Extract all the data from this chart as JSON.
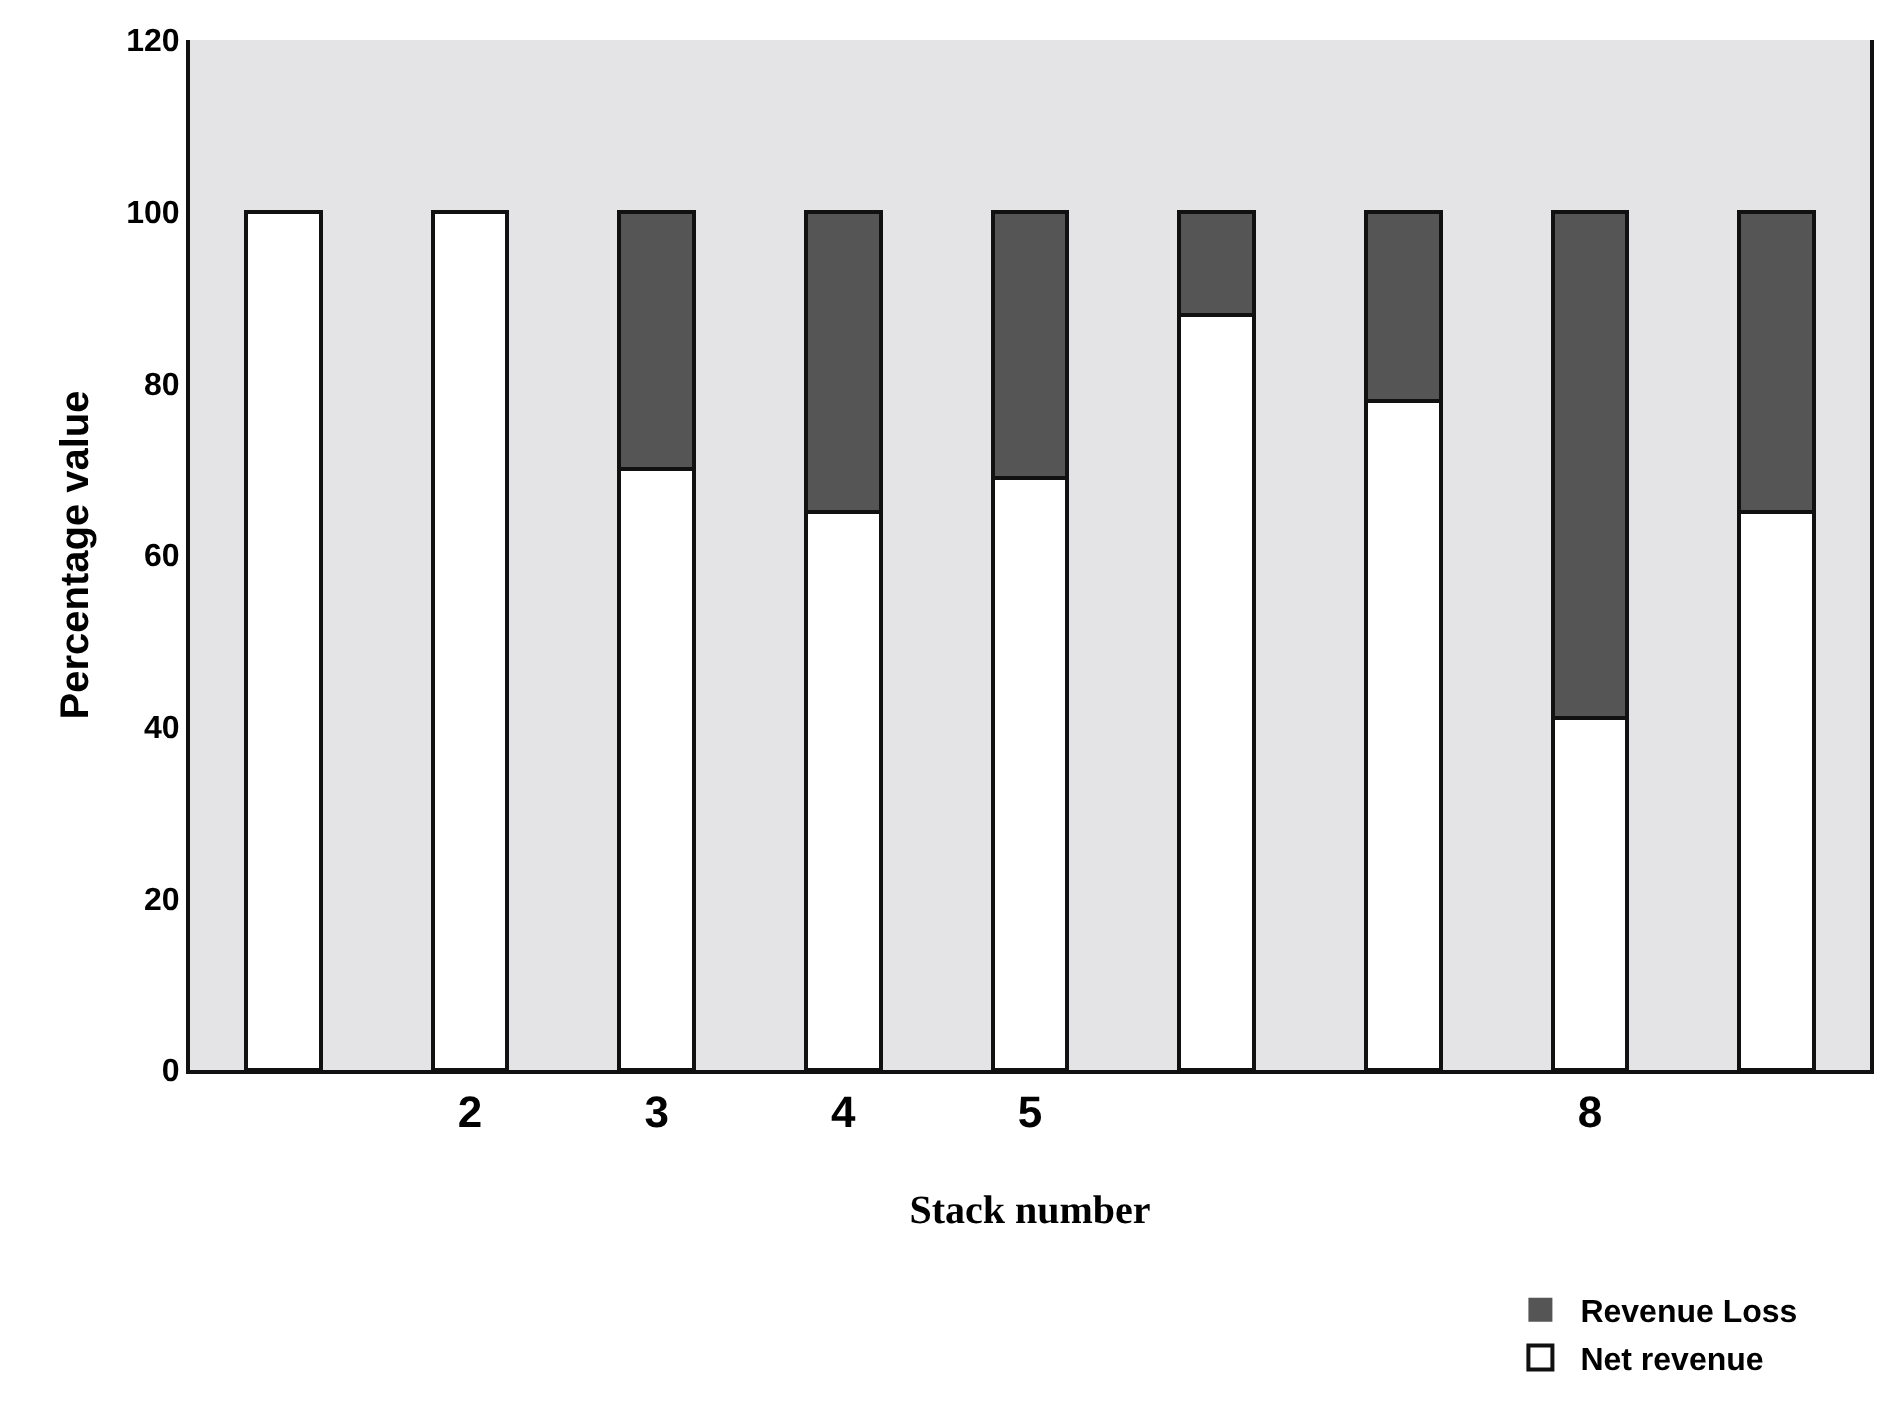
{
  "chart_data": {
    "type": "bar",
    "stacked": true,
    "xlabel": "Stack number",
    "ylabel": "Percentage value",
    "categories": [
      null,
      "2",
      "3",
      "4",
      "5",
      null,
      null,
      "8",
      null
    ],
    "series": [
      {
        "name": "Net revenue",
        "color": "#ffffff",
        "values": [
          100,
          100,
          70,
          65,
          69,
          88,
          78,
          41,
          65
        ]
      },
      {
        "name": "Revenue Loss",
        "color": "#555555",
        "values": [
          0,
          0,
          30,
          35,
          31,
          12,
          22,
          59,
          35
        ]
      }
    ],
    "ylim": [
      0,
      120
    ],
    "yticks": [
      0,
      20,
      40,
      60,
      80,
      100,
      120
    ],
    "grid": false,
    "legend": "bottom right"
  }
}
